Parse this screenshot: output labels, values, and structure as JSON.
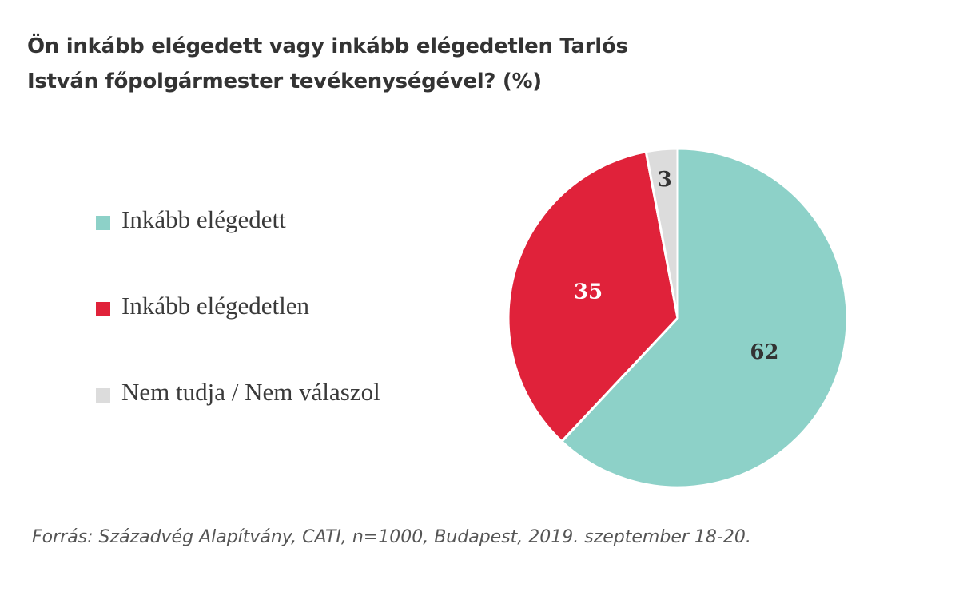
{
  "chart_data": {
    "type": "pie",
    "title": "Ön inkább elégedett vagy inkább elégedetlen Tarlós István főpolgármester tevékenységével? (%)",
    "categories": [
      "Inkább elégedett",
      "Inkább elégedetlen",
      "Nem tudja / Nem válaszol"
    ],
    "values": [
      62,
      35,
      3
    ],
    "colors": [
      "#8dd1c8",
      "#e0223a",
      "#dcdcdc"
    ],
    "label_colors": [
      "#333333",
      "#ffffff",
      "#333333"
    ],
    "legend_position": "left",
    "source": "Forrás: Századvég Alapítvány, CATI, n=1000, Budapest, 2019. szeptember 18-20."
  }
}
